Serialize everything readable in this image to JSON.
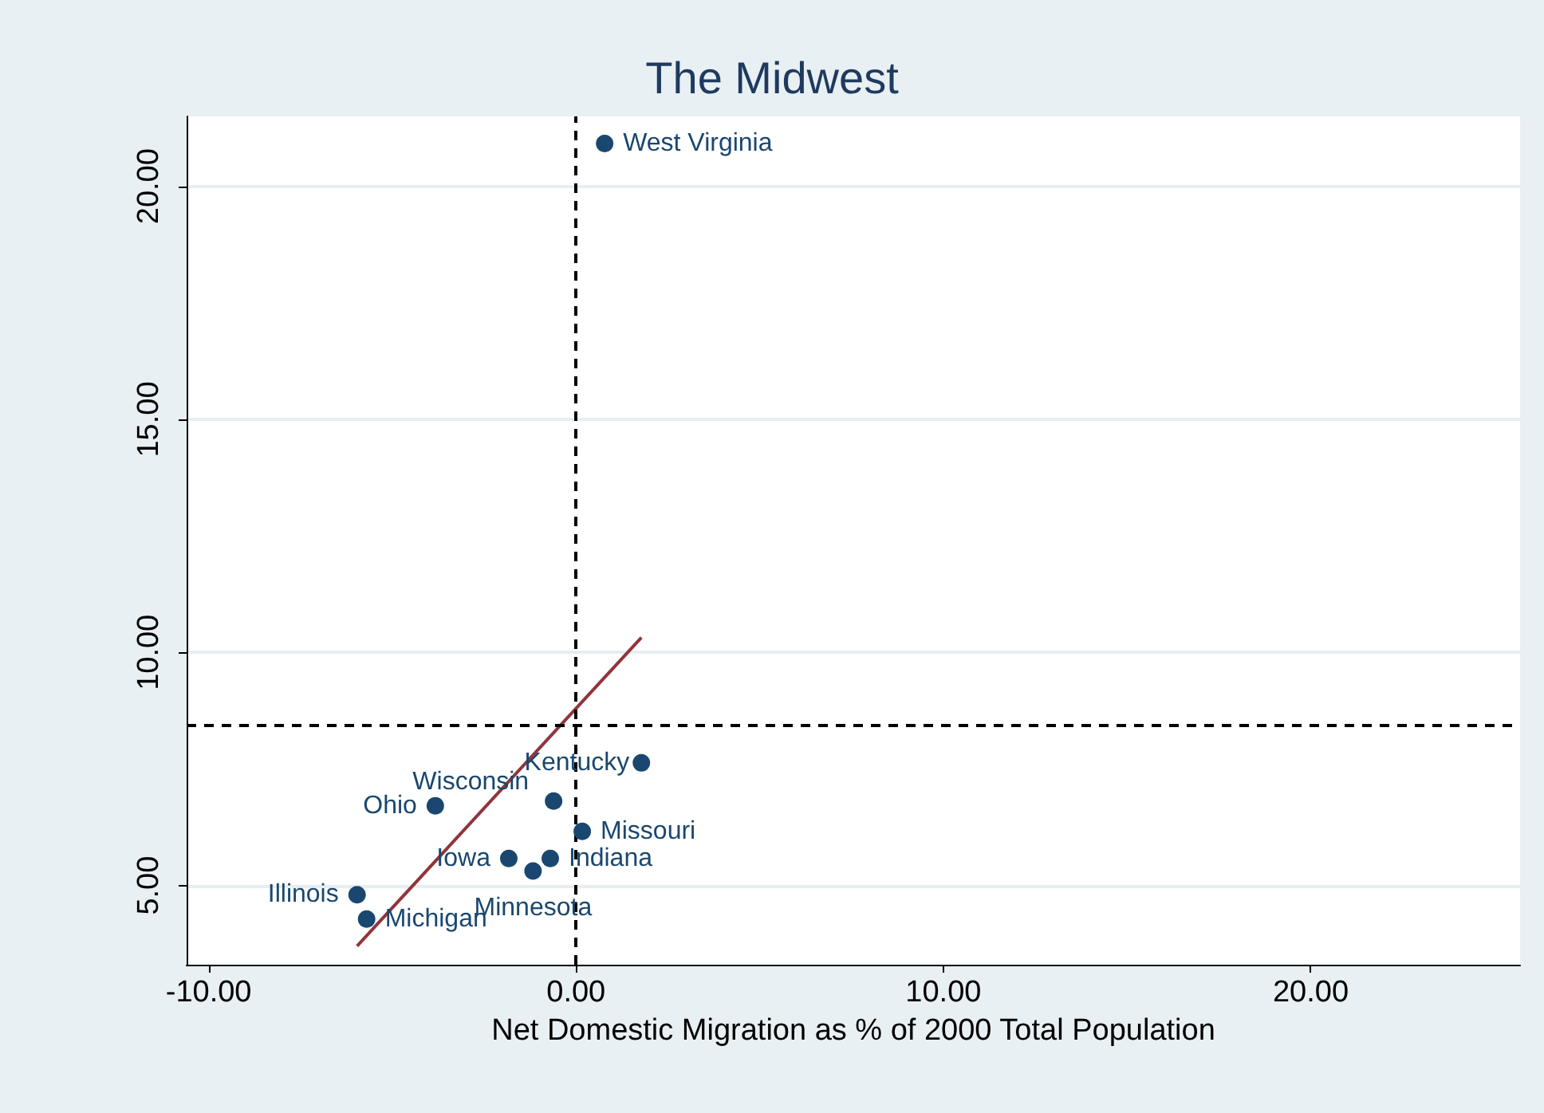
{
  "chart_data": {
    "type": "scatter",
    "title": "The Midwest",
    "xlabel": "Net Domestic Migration as % of 2000 Total Population",
    "xlim": [
      -10.6,
      25.7
    ],
    "ylim": [
      3.3,
      21.5
    ],
    "xticks": [
      {
        "value": -10,
        "label": "-10.00"
      },
      {
        "value": 0,
        "label": "0.00"
      },
      {
        "value": 10,
        "label": "10.00"
      },
      {
        "value": 20,
        "label": "20.00"
      }
    ],
    "yticks": [
      {
        "value": 5,
        "label": "5.00"
      },
      {
        "value": 10,
        "label": "10.00"
      },
      {
        "value": 15,
        "label": "15.00"
      },
      {
        "value": 20,
        "label": "20.00"
      }
    ],
    "grid": "y",
    "marker": "circle",
    "series": [
      {
        "color": "#1a476f",
        "x": [
          0.78,
          1.78,
          -0.61,
          -3.83,
          0.17,
          -1.83,
          -0.7,
          -1.17,
          -5.96,
          -5.7
        ],
        "values": [
          20.92,
          7.63,
          6.81,
          6.71,
          6.16,
          5.58,
          5.58,
          5.31,
          4.8,
          4.28
        ],
        "value_labels": [
          "West Virginia",
          "Kentucky",
          "Wisconsin",
          "Ohio",
          "Missouri",
          "Iowa",
          "Indiana",
          "Minnesota",
          "Illinois",
          "Michigan"
        ]
      },
      {
        "type": "line",
        "color": "#90353b",
        "marker": "none",
        "x": [
          -5.96,
          1.78
        ],
        "values": [
          3.7,
          10.32
        ]
      }
    ],
    "ref_lines": [
      {
        "axis": "x",
        "value": 0,
        "color": "#000000",
        "line_style": "dashed"
      },
      {
        "axis": "y",
        "value": 8.45,
        "color": "#000000",
        "line_style": "dashed"
      }
    ]
  }
}
